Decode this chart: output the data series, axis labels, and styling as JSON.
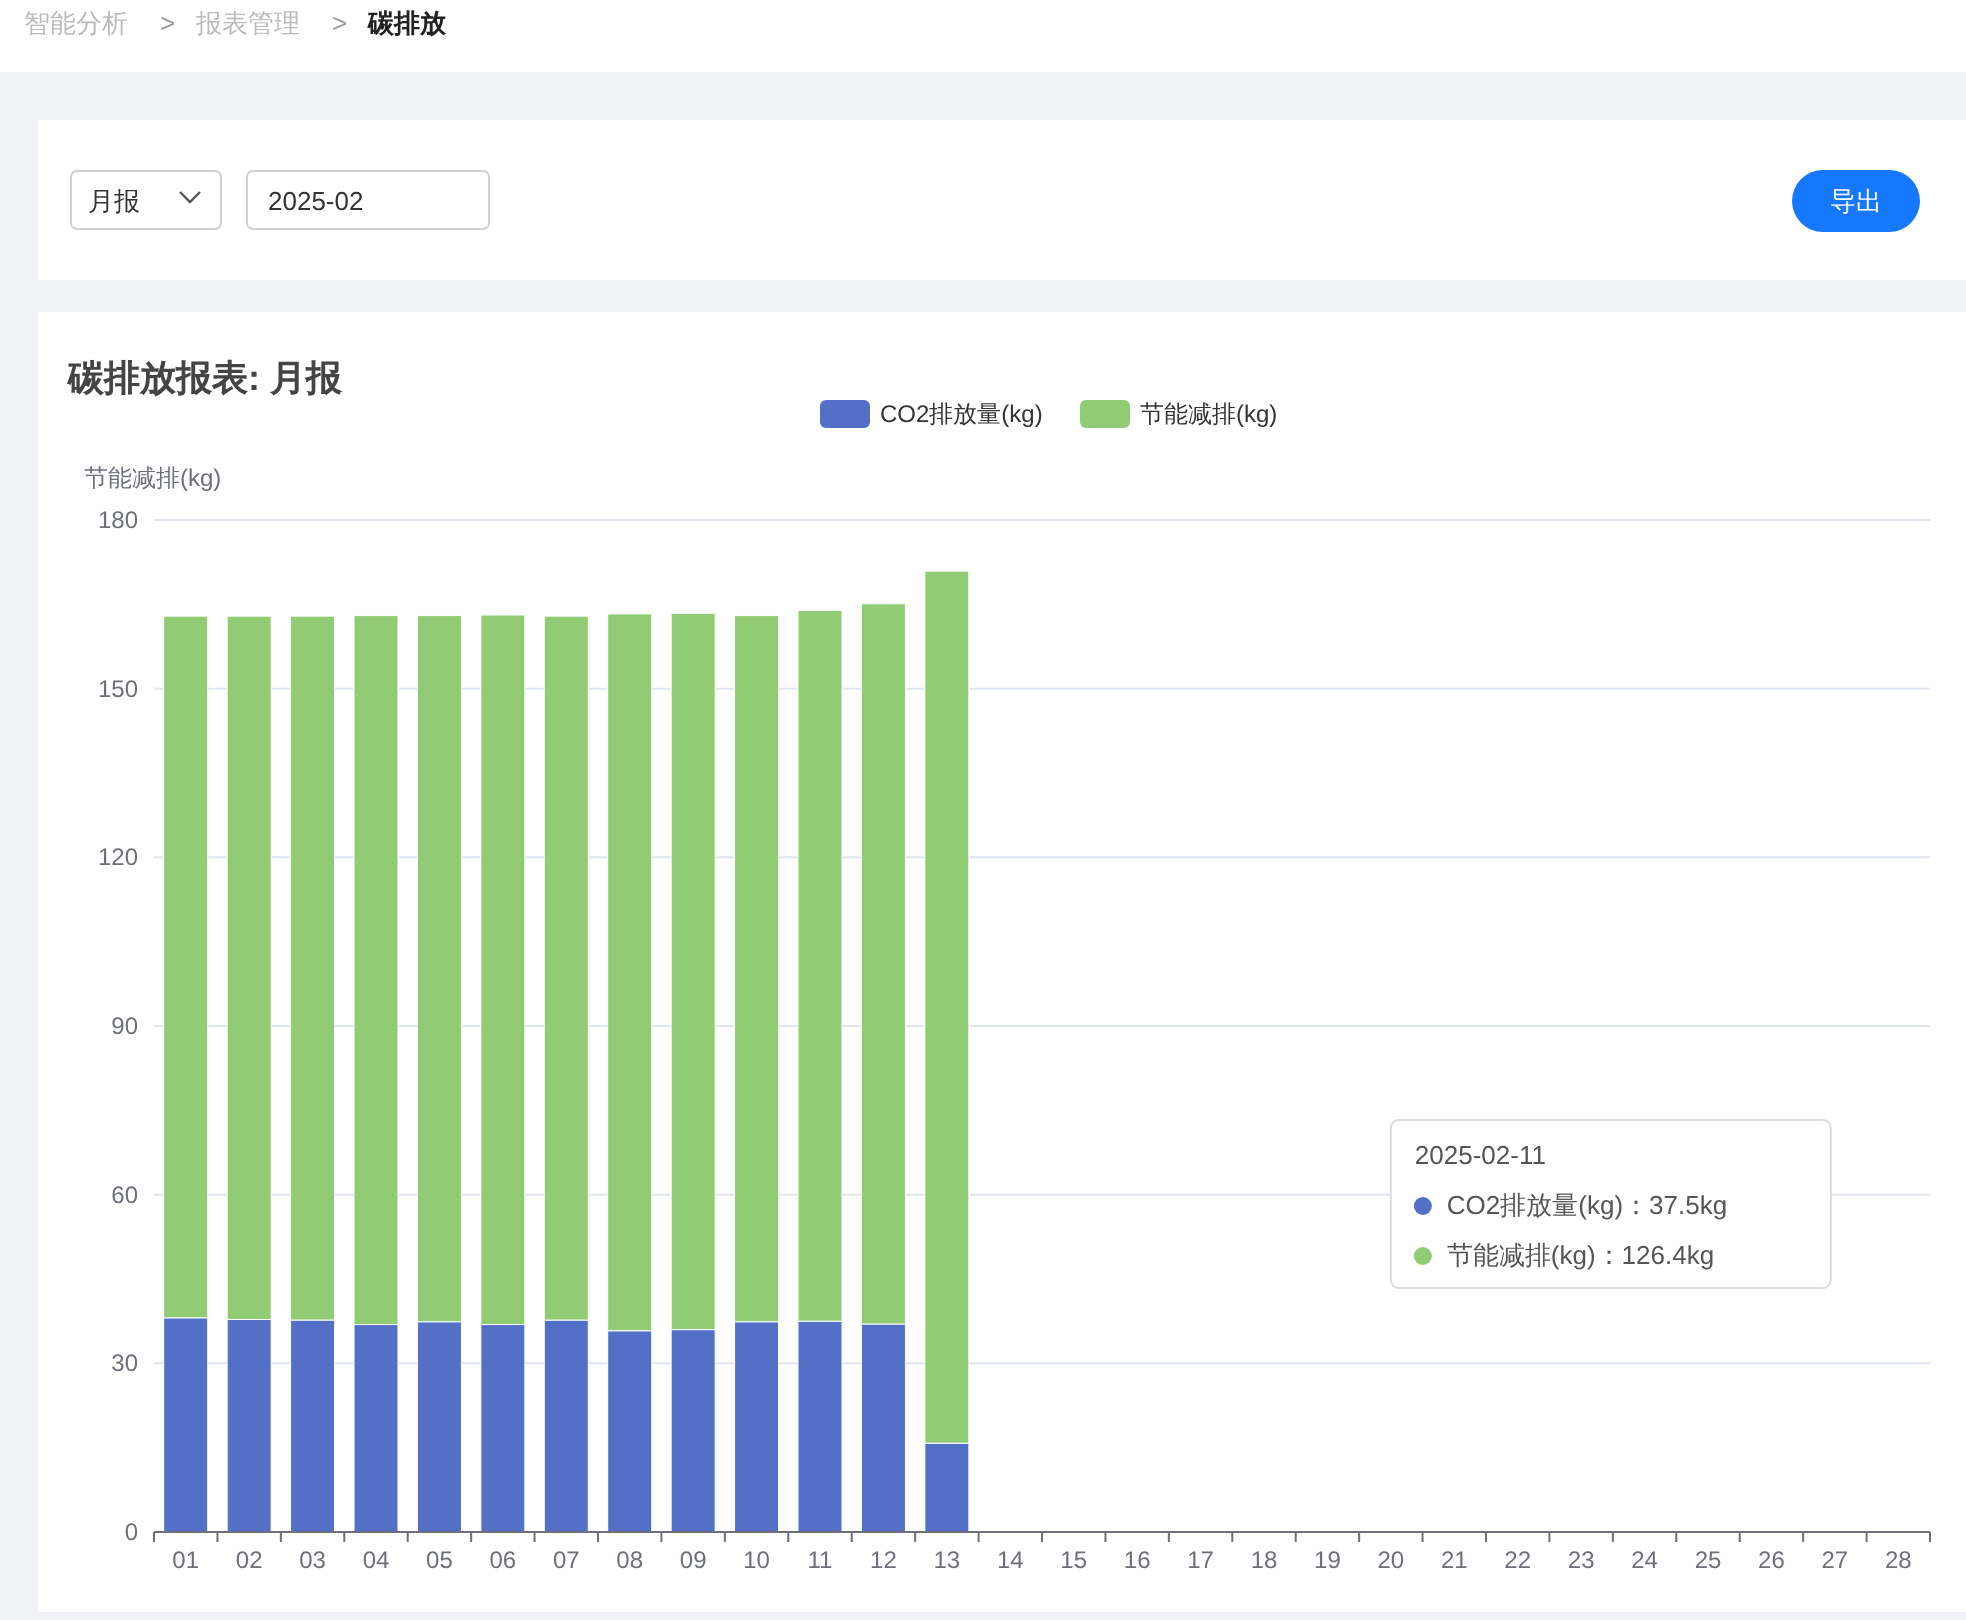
{
  "chart_data": {
    "type": "bar",
    "stacked": true,
    "title": "碳排放报表: 月报",
    "ylabel": "节能减排(kg)",
    "categories": [
      "01",
      "02",
      "03",
      "04",
      "05",
      "06",
      "07",
      "08",
      "09",
      "10",
      "11",
      "12",
      "13",
      "14",
      "15",
      "16",
      "17",
      "18",
      "19",
      "20",
      "21",
      "22",
      "23",
      "24",
      "25",
      "26",
      "27",
      "28"
    ],
    "series": [
      {
        "name": "CO2排放量(kg)",
        "color": "#5470c6",
        "values": [
          38.1,
          37.8,
          37.7,
          36.9,
          37.4,
          36.9,
          37.7,
          35.8,
          36.0,
          37.4,
          37.5,
          37.0,
          15.8,
          null,
          null,
          null,
          null,
          null,
          null,
          null,
          null,
          null,
          null,
          null,
          null,
          null,
          null,
          null
        ]
      },
      {
        "name": "节能减排(kg)",
        "color": "#91cc75",
        "values": [
          124.8,
          125.1,
          125.2,
          126.1,
          125.6,
          126.2,
          125.2,
          127.5,
          127.4,
          125.6,
          126.4,
          128.1,
          155.1,
          null,
          null,
          null,
          null,
          null,
          null,
          null,
          null,
          null,
          null,
          null,
          null,
          null,
          null,
          null
        ]
      }
    ],
    "ylim": [
      0,
      180
    ],
    "yticks": [
      0,
      30,
      60,
      90,
      120,
      150,
      180
    ],
    "grid": "y",
    "legend": "top",
    "annotations": [
      "智能分析",
      ">",
      "报表管理",
      ">",
      "碳排放",
      "月报",
      "2025-02",
      "导出",
      "2025-02-11",
      "CO2排放量(kg)：37.5kg",
      "节能减排(kg)：126.4kg"
    ]
  }
}
